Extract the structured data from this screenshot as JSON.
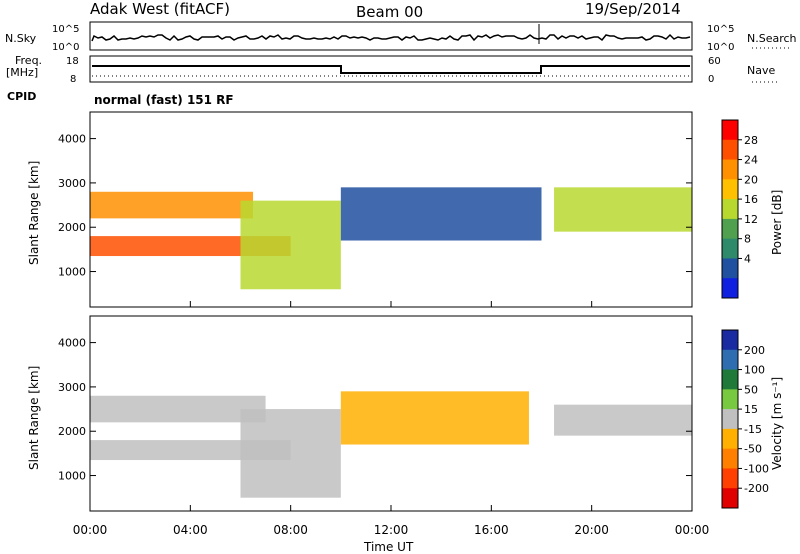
{
  "header": {
    "station": "Adak West (fitACF)",
    "beam": "Beam 00",
    "date": "19/Sep/2014",
    "mode": "normal (fast) 151 RF"
  },
  "noise_panel": {
    "left_label": "N.Sky",
    "right_label": "N.Search",
    "left_ticks": [
      "10^5",
      "10^0"
    ],
    "right_ticks": [
      "10^5",
      "10^0"
    ]
  },
  "freq_panel": {
    "left_label_line1": "Freq.",
    "left_label_line2": "[MHz]",
    "right_label": "Nave",
    "left_ticks": [
      "18",
      "8"
    ],
    "right_ticks": [
      "60",
      "0"
    ]
  },
  "cpid_label": "CPID",
  "axes": {
    "ylabel": "Slant Range [km]",
    "xlabel": "Time UT",
    "y_ticks": [
      "4000",
      "3000",
      "2000",
      "1000"
    ],
    "x_ticks": [
      "00:00",
      "04:00",
      "08:00",
      "12:00",
      "16:00",
      "20:00",
      "00:00"
    ]
  },
  "power_colorbar": {
    "label": "Power [dB]",
    "ticks": [
      "28",
      "24",
      "20",
      "16",
      "12",
      "8",
      "4"
    ],
    "colors": [
      "#ff0000",
      "#ff5000",
      "#ff9000",
      "#ffc000",
      "#b8d830",
      "#50a050",
      "#2e8a6a",
      "#2050a0",
      "#1020e0"
    ]
  },
  "velocity_colorbar": {
    "label": "Velocity [m s⁻¹]",
    "ticks": [
      "200",
      "100",
      "50",
      "15",
      "-15",
      "-50",
      "-100",
      "-200"
    ],
    "colors": [
      "#1a2aa0",
      "#2e6eb0",
      "#1f7a3a",
      "#78c840",
      "#c0c0c0",
      "#ffb000",
      "#ff8000",
      "#ff4000",
      "#e00000"
    ]
  },
  "chart_data": [
    {
      "type": "heatmap",
      "title": "Adak West (fitACF) Beam 00 19/Sep/2014",
      "xlabel": "Time UT",
      "ylabel": "Slant Range [km]",
      "colorbar_label": "Power [dB]",
      "xlim": [
        "00:00",
        "24:00"
      ],
      "ylim": [
        200,
        4600
      ],
      "colorbar_range": [
        3,
        30
      ],
      "bands": [
        {
          "t_start": 0.0,
          "t_end": 8.0,
          "range_km": [
            1350,
            1800
          ],
          "power_db": 28
        },
        {
          "t_start": 0.0,
          "t_end": 6.5,
          "range_km": [
            2200,
            2800
          ],
          "power_db": 22
        },
        {
          "t_start": 6.0,
          "t_end": 10.0,
          "range_km": [
            600,
            2600
          ],
          "power_db": 16
        },
        {
          "t_start": 10.0,
          "t_end": 18.0,
          "range_km": [
            1700,
            2900
          ],
          "power_db": 8
        },
        {
          "t_start": 18.5,
          "t_end": 24.0,
          "range_km": [
            1900,
            2900
          ],
          "power_db": 16
        }
      ]
    },
    {
      "type": "heatmap",
      "title": "",
      "xlabel": "Time UT",
      "ylabel": "Slant Range [km]",
      "colorbar_label": "Velocity [m s⁻¹]",
      "xlim": [
        "00:00",
        "24:00"
      ],
      "ylim": [
        200,
        4600
      ],
      "colorbar_range": [
        -250,
        250
      ],
      "bands": [
        {
          "t_start": 0.0,
          "t_end": 8.0,
          "range_km": [
            1350,
            1800
          ],
          "velocity": 0
        },
        {
          "t_start": 0.0,
          "t_end": 7.0,
          "range_km": [
            2200,
            2800
          ],
          "velocity": 0
        },
        {
          "t_start": 6.0,
          "t_end": 10.0,
          "range_km": [
            500,
            2500
          ],
          "velocity": -30
        },
        {
          "t_start": 10.0,
          "t_end": 17.5,
          "range_km": [
            1700,
            2900
          ],
          "velocity": -40
        },
        {
          "t_start": 18.5,
          "t_end": 24.0,
          "range_km": [
            1900,
            2600
          ],
          "velocity": 0
        }
      ]
    },
    {
      "type": "line",
      "title": "",
      "xlabel": "",
      "ylabel": "Freq. [MHz]",
      "series": [
        {
          "x": [
            0,
            10,
            10,
            18,
            18,
            24
          ],
          "y": [
            13,
            13,
            10,
            10,
            13,
            13
          ]
        }
      ],
      "ylim": [
        8,
        18
      ]
    }
  ]
}
